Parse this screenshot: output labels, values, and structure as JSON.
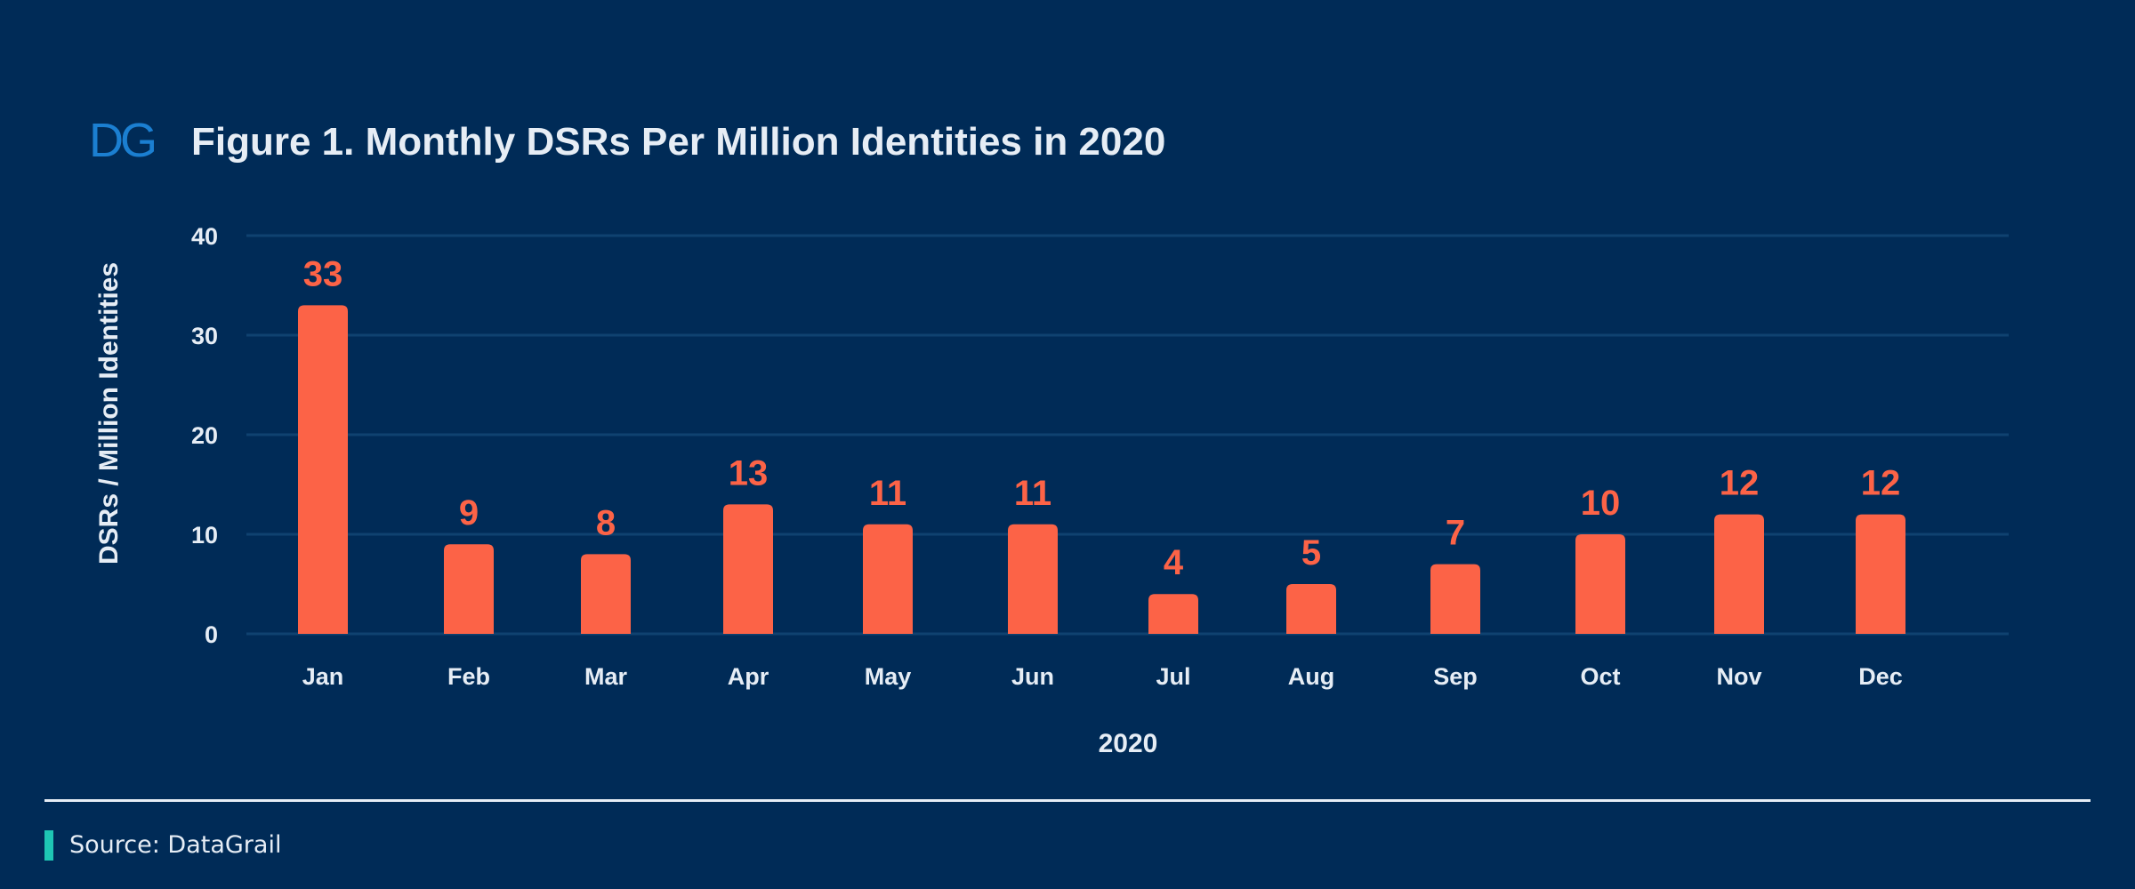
{
  "logo": {
    "text": "DG"
  },
  "colors": {
    "background": "#002b57",
    "bar": "#fc6347",
    "label": "#fc6347",
    "grid": "#0f4270",
    "text": "#e6edf5",
    "logo": "#1b7fd1",
    "source_accent": "#1ec6b4"
  },
  "chart_data": {
    "type": "bar",
    "title": "Figure 1. Monthly DSRs Per Million Identities in 2020",
    "xlabel": "2020",
    "ylabel": "DSRs / Million Identities",
    "categories": [
      "Jan",
      "Feb",
      "Mar",
      "Apr",
      "May",
      "Jun",
      "Jul",
      "Aug",
      "Sep",
      "Oct",
      "Nov",
      "Dec"
    ],
    "values": [
      33,
      9,
      8,
      13,
      11,
      11,
      4,
      5,
      7,
      10,
      12,
      12
    ],
    "data_labels": [
      "33",
      "9",
      "8",
      "13",
      "11",
      "11",
      "4",
      "5",
      "7",
      "10",
      "12",
      "12"
    ],
    "ylim": [
      0,
      40
    ],
    "yticks": [
      0,
      10,
      20,
      30,
      40
    ],
    "grid": true
  },
  "footer": {
    "source": "Source: DataGrail"
  }
}
